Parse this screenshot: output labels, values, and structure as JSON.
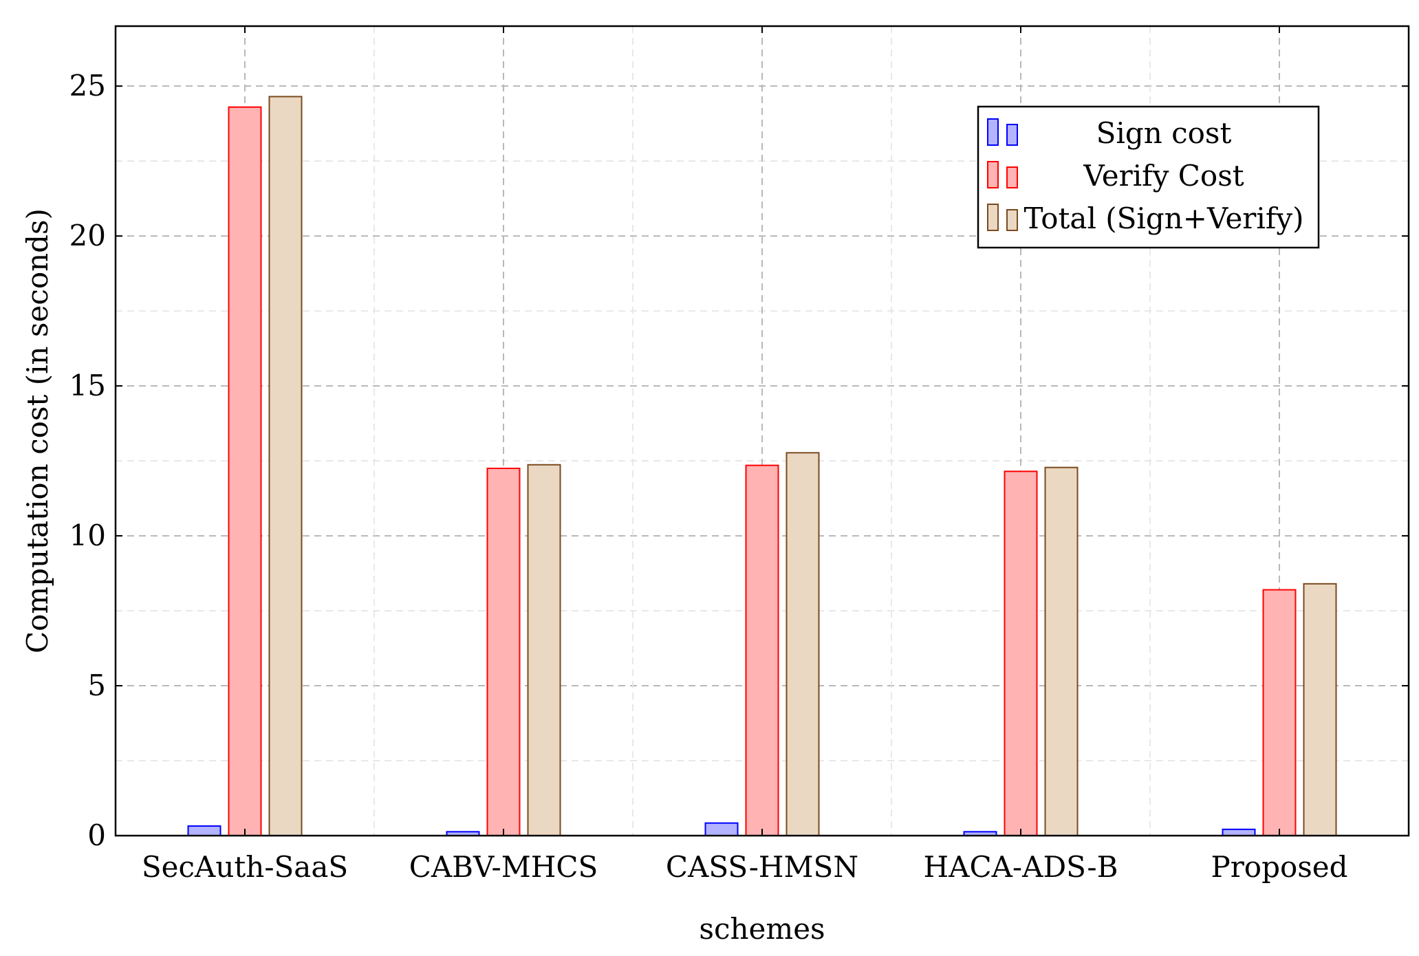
{
  "chart_data": {
    "type": "bar",
    "title": "",
    "xlabel": "schemes",
    "ylabel": "Computation cost (in seconds)",
    "ylim": [
      0,
      27
    ],
    "yticks": [
      0,
      5,
      10,
      15,
      20,
      25
    ],
    "grid": true,
    "legend_position": "top-right",
    "categories": [
      "SecAuth-SaaS",
      "CABV-MHCS",
      "CASS-HMSN",
      "HACA-ADS-B",
      "Proposed"
    ],
    "series": [
      {
        "name": "Sign cost",
        "values": [
          0.32,
          0.13,
          0.42,
          0.13,
          0.21
        ],
        "fill": "#b3b3ff",
        "stroke": "#0000ff"
      },
      {
        "name": "Verify Cost",
        "values": [
          24.3,
          12.25,
          12.35,
          12.15,
          8.2
        ],
        "fill": "#ffb3b3",
        "stroke": "#ff0000"
      },
      {
        "name": "Total (Sign+Verify)",
        "values": [
          24.65,
          12.37,
          12.77,
          12.28,
          8.4
        ],
        "fill": "#ead8c3",
        "stroke": "#7a4a1e"
      }
    ]
  }
}
